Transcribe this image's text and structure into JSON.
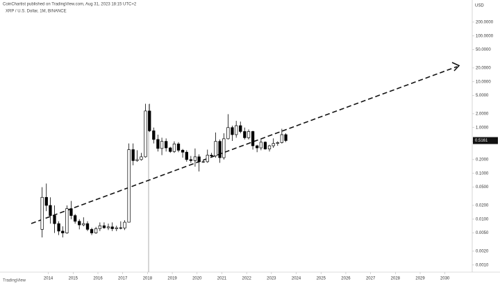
{
  "chart_data": {
    "type": "candlestick",
    "title": "XRP / U.S. Dollar, 1M, BINANCE",
    "subtitle": "CoinChartist published on TradingView.com, Aug 31, 2023 18:15 UTC+2",
    "y_axis_label": "USD",
    "last_price_label": "0.5161",
    "logo": "TradingView",
    "log_scale": true,
    "grid": false,
    "up_color": "#ffffff",
    "down_color": "#000000",
    "xlim": [
      2012.05,
      2031.1
    ],
    "xticks": [
      2014,
      2015,
      2016,
      2017,
      2018,
      2019,
      2020,
      2021,
      2022,
      2023,
      2024,
      2025,
      2026,
      2027,
      2028,
      2029,
      2030
    ],
    "ylim": [
      0.0007,
      400
    ],
    "yticks": [
      {
        "value": 200,
        "label": "200.0000"
      },
      {
        "value": 100,
        "label": "100.0000"
      },
      {
        "value": 50,
        "label": "50.0000"
      },
      {
        "value": 20,
        "label": "20.0000"
      },
      {
        "value": 10,
        "label": "10.0000"
      },
      {
        "value": 5,
        "label": "5.0000"
      },
      {
        "value": 2,
        "label": "2.0000"
      },
      {
        "value": 1,
        "label": "1.0000"
      },
      {
        "value": 0.5,
        "label": "0.5000"
      },
      {
        "value": 0.2,
        "label": "0.2000"
      },
      {
        "value": 0.1,
        "label": "0.1000"
      },
      {
        "value": 0.05,
        "label": "0.0500"
      },
      {
        "value": 0.02,
        "label": "0.0200"
      },
      {
        "value": 0.01,
        "label": "0.0100"
      },
      {
        "value": 0.005,
        "label": "0.0050"
      },
      {
        "value": 0.002,
        "label": "0.0020"
      },
      {
        "value": 0.001,
        "label": "0.0010"
      }
    ],
    "x": [
      2013.75,
      2013.92,
      2014.08,
      2014.25,
      2014.42,
      2014.58,
      2014.75,
      2014.92,
      2015.08,
      2015.25,
      2015.42,
      2015.58,
      2015.75,
      2015.92,
      2016.08,
      2016.25,
      2016.42,
      2016.58,
      2016.75,
      2016.92,
      2017.08,
      2017.25,
      2017.42,
      2017.58,
      2017.75,
      2017.92,
      2018.08,
      2018.25,
      2018.42,
      2018.58,
      2018.75,
      2018.92,
      2019.08,
      2019.25,
      2019.42,
      2019.58,
      2019.75,
      2019.92,
      2020.08,
      2020.25,
      2020.42,
      2020.58,
      2020.75,
      2020.92,
      2021.08,
      2021.25,
      2021.42,
      2021.58,
      2021.75,
      2021.92,
      2022.08,
      2022.25,
      2022.42,
      2022.58,
      2022.75,
      2022.92,
      2023.08,
      2023.25,
      2023.42,
      2023.58
    ],
    "open": [
      0.006,
      0.03,
      0.02,
      0.012,
      0.008,
      0.0055,
      0.005,
      0.017,
      0.012,
      0.009,
      0.0075,
      0.008,
      0.006,
      0.005,
      0.0062,
      0.0072,
      0.0065,
      0.0068,
      0.0062,
      0.0065,
      0.0064,
      0.0086,
      0.33,
      0.19,
      0.2,
      0.23,
      2.3,
      0.85,
      0.55,
      0.35,
      0.5,
      0.36,
      0.3,
      0.44,
      0.32,
      0.29,
      0.2,
      0.19,
      0.23,
      0.18,
      0.18,
      0.25,
      0.24,
      0.5,
      0.22,
      0.57,
      1.0,
      0.7,
      1.1,
      0.82,
      0.6,
      0.82,
      0.4,
      0.36,
      0.48,
      0.34,
      0.4,
      0.45,
      0.47,
      0.7
    ],
    "high": [
      0.05,
      0.06,
      0.03,
      0.02,
      0.009,
      0.007,
      0.02,
      0.025,
      0.013,
      0.01,
      0.011,
      0.009,
      0.0065,
      0.0068,
      0.0085,
      0.0085,
      0.008,
      0.0085,
      0.0072,
      0.009,
      0.0095,
      0.45,
      0.45,
      0.32,
      0.28,
      3.3,
      3.3,
      1.0,
      0.7,
      0.6,
      0.58,
      0.38,
      0.5,
      0.48,
      0.34,
      0.32,
      0.24,
      0.35,
      0.26,
      0.2,
      0.33,
      0.28,
      0.78,
      0.55,
      0.75,
      1.96,
      1.1,
      1.4,
      1.35,
      1.0,
      0.91,
      0.85,
      0.42,
      0.55,
      0.5,
      0.42,
      0.58,
      0.5,
      0.94,
      0.75
    ],
    "low": [
      0.004,
      0.015,
      0.008,
      0.005,
      0.0045,
      0.004,
      0.0048,
      0.01,
      0.008,
      0.006,
      0.007,
      0.0055,
      0.0045,
      0.0048,
      0.0055,
      0.0062,
      0.0058,
      0.0055,
      0.0055,
      0.006,
      0.0058,
      0.0085,
      0.15,
      0.18,
      0.19,
      0.22,
      0.8,
      0.45,
      0.3,
      0.25,
      0.3,
      0.28,
      0.28,
      0.29,
      0.22,
      0.18,
      0.17,
      0.14,
      0.11,
      0.17,
      0.17,
      0.23,
      0.22,
      0.17,
      0.2,
      0.55,
      0.51,
      0.6,
      0.75,
      0.55,
      0.55,
      0.33,
      0.29,
      0.32,
      0.33,
      0.3,
      0.36,
      0.4,
      0.45,
      0.48
    ],
    "close": [
      0.03,
      0.02,
      0.012,
      0.008,
      0.0055,
      0.005,
      0.017,
      0.012,
      0.009,
      0.0075,
      0.008,
      0.006,
      0.005,
      0.0062,
      0.0072,
      0.0065,
      0.0068,
      0.0062,
      0.0065,
      0.0064,
      0.0086,
      0.33,
      0.19,
      0.2,
      0.23,
      2.3,
      0.85,
      0.55,
      0.35,
      0.5,
      0.36,
      0.3,
      0.44,
      0.32,
      0.29,
      0.2,
      0.19,
      0.23,
      0.18,
      0.18,
      0.25,
      0.24,
      0.5,
      0.22,
      0.57,
      1.0,
      0.7,
      1.1,
      0.82,
      0.6,
      0.82,
      0.4,
      0.36,
      0.48,
      0.34,
      0.4,
      0.45,
      0.47,
      0.7,
      0.52
    ]
  }
}
